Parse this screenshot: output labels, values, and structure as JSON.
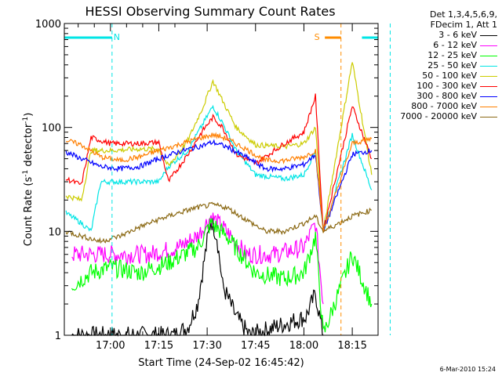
{
  "chart_data": {
    "type": "line",
    "title": "HESSI Observing Summary Count Rates",
    "xlabel": "Start Time (24-Sep-02 16:45:42)",
    "ylabel_parts": [
      "Count Rate (s",
      "-1",
      " detector",
      "-1",
      ")"
    ],
    "x_range": [
      "16:45:42",
      "18:23:00"
    ],
    "x_ticks": [
      "17:00",
      "17:15",
      "17:30",
      "17:45",
      "18:00",
      "18:15"
    ],
    "y_scale": "log",
    "y_range": [
      1,
      1000
    ],
    "y_ticks": [
      "1",
      "10",
      "100",
      "1000"
    ],
    "attenuator_markers": [
      {
        "label": "N",
        "color": "#00e5e5",
        "start": "16:45:42",
        "end": "17:00:30",
        "style": "cyan-bar"
      },
      {
        "label": "S",
        "color": "#ff8c00",
        "start": "18:06:30",
        "end": "18:11:30",
        "style": "orange-bar"
      }
    ],
    "legend_header": [
      "Det 1,3,4,5,6,9,",
      "FDecim 1, Att 1"
    ],
    "series": [
      {
        "name": "3 - 6 keV",
        "color": "#000000",
        "points": [
          [
            16.8,
            1
          ],
          [
            17.33,
            1
          ],
          [
            17.4,
            1.2
          ],
          [
            17.45,
            2
          ],
          [
            17.5,
            8
          ],
          [
            17.52,
            13
          ],
          [
            17.55,
            9
          ],
          [
            17.58,
            3
          ],
          [
            17.65,
            1.5
          ],
          [
            17.72,
            1
          ],
          [
            18.01,
            1.5
          ],
          [
            18.06,
            2.5
          ],
          [
            18.1,
            1
          ]
        ]
      },
      {
        "name": "6 - 12 keV",
        "color": "#ff00ff",
        "points": [
          [
            16.8,
            6
          ],
          [
            17.0,
            6
          ],
          [
            17.2,
            6
          ],
          [
            17.35,
            7
          ],
          [
            17.45,
            9
          ],
          [
            17.52,
            14
          ],
          [
            17.6,
            10
          ],
          [
            17.7,
            6
          ],
          [
            17.85,
            6
          ],
          [
            18.0,
            7
          ],
          [
            18.06,
            12
          ],
          [
            18.1,
            2
          ]
        ]
      },
      {
        "name": "12 - 25 keV",
        "color": "#00ff00",
        "points": [
          [
            16.8,
            3
          ],
          [
            16.9,
            4
          ],
          [
            17.0,
            4.5
          ],
          [
            17.15,
            4
          ],
          [
            17.3,
            5
          ],
          [
            17.45,
            7
          ],
          [
            17.52,
            12
          ],
          [
            17.6,
            9
          ],
          [
            17.75,
            4
          ],
          [
            17.9,
            3.5
          ],
          [
            18.0,
            4
          ],
          [
            18.06,
            9
          ],
          [
            18.1,
            1
          ],
          [
            18.25,
            6
          ],
          [
            18.35,
            2
          ]
        ]
      },
      {
        "name": "25 - 50 keV",
        "color": "#00e5e5",
        "points": [
          [
            16.77,
            15
          ],
          [
            16.85,
            12
          ],
          [
            16.9,
            10
          ],
          [
            16.95,
            30
          ],
          [
            17.1,
            30
          ],
          [
            17.25,
            30
          ],
          [
            17.3,
            42
          ],
          [
            17.4,
            60
          ],
          [
            17.48,
            110
          ],
          [
            17.53,
            160
          ],
          [
            17.58,
            110
          ],
          [
            17.65,
            60
          ],
          [
            17.75,
            35
          ],
          [
            17.9,
            32
          ],
          [
            18.0,
            35
          ],
          [
            18.06,
            60
          ],
          [
            18.1,
            10
          ],
          [
            18.25,
            85
          ],
          [
            18.35,
            25
          ]
        ]
      },
      {
        "name": "50 - 100 keV",
        "color": "#cccc00",
        "points": [
          [
            16.77,
            22
          ],
          [
            16.85,
            20
          ],
          [
            16.9,
            60
          ],
          [
            17.0,
            60
          ],
          [
            17.15,
            62
          ],
          [
            17.25,
            62
          ],
          [
            17.3,
            42
          ],
          [
            17.4,
            75
          ],
          [
            17.48,
            160
          ],
          [
            17.53,
            280
          ],
          [
            17.58,
            180
          ],
          [
            17.65,
            100
          ],
          [
            17.75,
            68
          ],
          [
            17.9,
            65
          ],
          [
            18.0,
            70
          ],
          [
            18.06,
            100
          ],
          [
            18.1,
            10
          ],
          [
            18.25,
            430
          ],
          [
            18.35,
            35
          ]
        ]
      },
      {
        "name": "100 - 300 keV",
        "color": "#ff0000",
        "points": [
          [
            16.77,
            32
          ],
          [
            16.85,
            28
          ],
          [
            16.9,
            80
          ],
          [
            17.0,
            70
          ],
          [
            17.15,
            70
          ],
          [
            17.25,
            72
          ],
          [
            17.3,
            30
          ],
          [
            17.4,
            55
          ],
          [
            17.48,
            95
          ],
          [
            17.53,
            125
          ],
          [
            17.58,
            100
          ],
          [
            17.65,
            55
          ],
          [
            17.75,
            45
          ],
          [
            17.9,
            70
          ],
          [
            18.0,
            90
          ],
          [
            18.06,
            200
          ],
          [
            18.1,
            10
          ],
          [
            18.25,
            160
          ],
          [
            18.35,
            50
          ]
        ]
      },
      {
        "name": "300 - 800 keV",
        "color": "#0000ff",
        "points": [
          [
            16.77,
            58
          ],
          [
            16.85,
            50
          ],
          [
            16.95,
            42
          ],
          [
            17.05,
            40
          ],
          [
            17.15,
            42
          ],
          [
            17.25,
            50
          ],
          [
            17.35,
            58
          ],
          [
            17.45,
            65
          ],
          [
            17.53,
            72
          ],
          [
            17.6,
            65
          ],
          [
            17.7,
            52
          ],
          [
            17.8,
            40
          ],
          [
            17.9,
            40
          ],
          [
            18.0,
            44
          ],
          [
            18.06,
            55
          ],
          [
            18.1,
            10
          ],
          [
            18.25,
            55
          ],
          [
            18.35,
            60
          ]
        ]
      },
      {
        "name": "800 - 7000 keV",
        "color": "#ff7f00",
        "points": [
          [
            16.77,
            75
          ],
          [
            16.85,
            68
          ],
          [
            16.95,
            52
          ],
          [
            17.05,
            48
          ],
          [
            17.15,
            52
          ],
          [
            17.25,
            60
          ],
          [
            17.35,
            68
          ],
          [
            17.45,
            78
          ],
          [
            17.53,
            85
          ],
          [
            17.6,
            78
          ],
          [
            17.7,
            62
          ],
          [
            17.8,
            48
          ],
          [
            17.9,
            48
          ],
          [
            18.0,
            52
          ],
          [
            18.06,
            60
          ],
          [
            18.1,
            10
          ],
          [
            18.25,
            70
          ],
          [
            18.35,
            78
          ]
        ]
      },
      {
        "name": "7000 - 20000 keV",
        "color": "#8b6914",
        "points": [
          [
            16.77,
            10
          ],
          [
            16.85,
            9
          ],
          [
            16.95,
            8
          ],
          [
            17.05,
            9
          ],
          [
            17.15,
            11
          ],
          [
            17.25,
            13
          ],
          [
            17.35,
            15
          ],
          [
            17.45,
            17
          ],
          [
            17.53,
            18
          ],
          [
            17.6,
            17
          ],
          [
            17.7,
            13
          ],
          [
            17.8,
            10
          ],
          [
            17.9,
            10
          ],
          [
            18.0,
            12
          ],
          [
            18.06,
            14
          ],
          [
            18.1,
            10
          ],
          [
            18.25,
            14
          ],
          [
            18.35,
            16
          ]
        ]
      }
    ]
  },
  "footer": "6-Mar-2010 15:24"
}
